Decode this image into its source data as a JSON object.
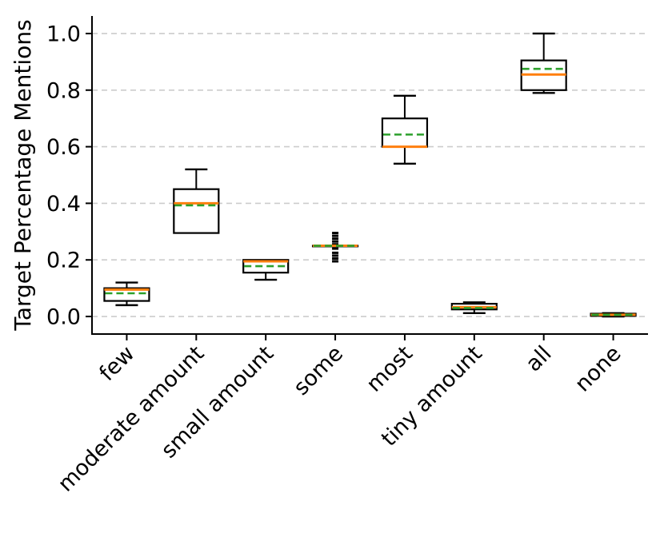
{
  "figure": {
    "title": "",
    "background": "#ffffff"
  },
  "chart_data": {
    "type": "boxplot",
    "title": "",
    "xlabel": "",
    "ylabel": "Target Percentage Mentions",
    "ylim": [
      -0.062,
      1.062
    ],
    "yticks": [
      0.0,
      0.2,
      0.4,
      0.6,
      0.8,
      1.0
    ],
    "grid": "horizontal-dashed",
    "legend": "none",
    "colors": {
      "median_line": "#ff7f0e",
      "mean_line": "#2ca02c",
      "box_edge": "#000000",
      "box_fill": "#ffffff",
      "whisker": "#000000",
      "flier": "#000000",
      "gridline": "#cccccc",
      "axis": "#000000"
    },
    "categories": [
      "few",
      "moderate amount",
      "small amount",
      "some",
      "most",
      "tiny amount",
      "all",
      "none"
    ],
    "boxes": [
      {
        "label": "few",
        "whislo": 0.04,
        "q1": 0.055,
        "med": 0.095,
        "q3": 0.1,
        "whishi": 0.12,
        "mean": 0.082,
        "fliers": []
      },
      {
        "label": "moderate amount",
        "whislo": 0.295,
        "q1": 0.295,
        "med": 0.4,
        "q3": 0.45,
        "whishi": 0.52,
        "mean": 0.393,
        "fliers": []
      },
      {
        "label": "small amount",
        "whislo": 0.13,
        "q1": 0.155,
        "med": 0.195,
        "q3": 0.2,
        "whishi": 0.2,
        "mean": 0.178,
        "fliers": []
      },
      {
        "label": "some",
        "whislo": 0.25,
        "q1": 0.25,
        "med": 0.25,
        "q3": 0.25,
        "whishi": 0.25,
        "mean": 0.25,
        "fliers": [
          0.195,
          0.205,
          0.215,
          0.225,
          0.24,
          0.255,
          0.265,
          0.275,
          0.285,
          0.295
        ]
      },
      {
        "label": "most",
        "whislo": 0.54,
        "q1": 0.6,
        "med": 0.6,
        "q3": 0.7,
        "whishi": 0.78,
        "mean": 0.643,
        "fliers": []
      },
      {
        "label": "tiny amount",
        "whislo": 0.012,
        "q1": 0.025,
        "med": 0.033,
        "q3": 0.045,
        "whishi": 0.05,
        "mean": 0.03,
        "fliers": []
      },
      {
        "label": "all",
        "whislo": 0.79,
        "q1": 0.8,
        "med": 0.855,
        "q3": 0.905,
        "whishi": 1.0,
        "mean": 0.875,
        "fliers": []
      },
      {
        "label": "none",
        "whislo": 0.0,
        "q1": 0.002,
        "med": 0.006,
        "q3": 0.01,
        "whishi": 0.012,
        "mean": 0.006,
        "fliers": []
      }
    ]
  }
}
